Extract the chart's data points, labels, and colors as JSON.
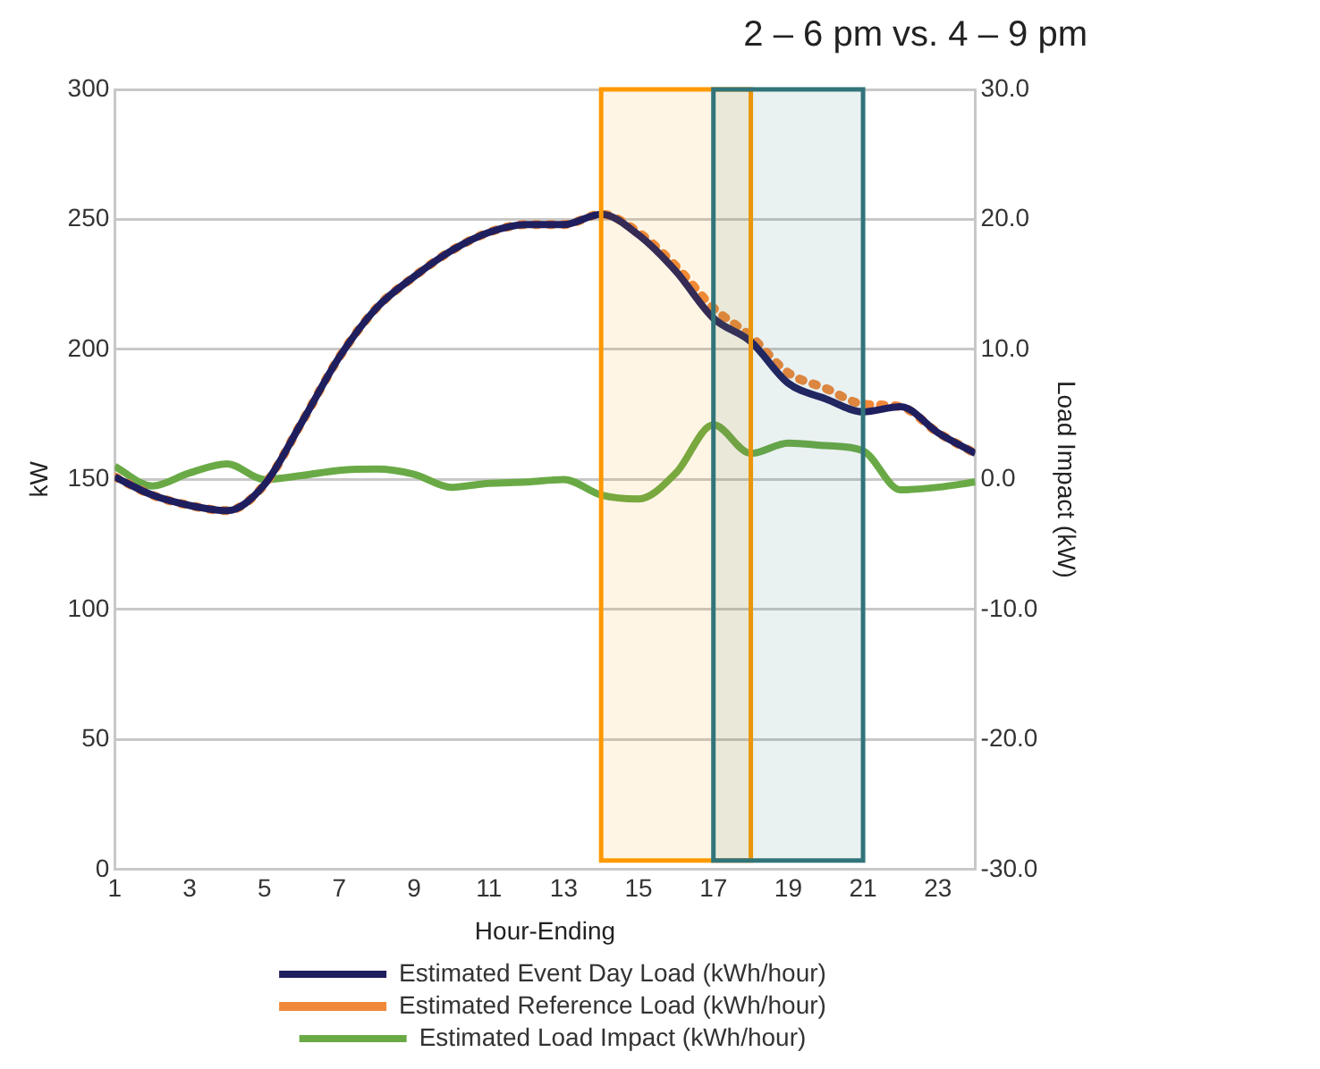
{
  "chart_data": {
    "type": "line",
    "title": "2 – 6 pm vs. 4 – 9 pm",
    "xlabel": "Hour-Ending",
    "ylabel": "kW",
    "y2label": "Load Impact (kW)",
    "x": [
      1,
      2,
      3,
      4,
      5,
      6,
      7,
      8,
      9,
      10,
      11,
      12,
      13,
      14,
      15,
      16,
      17,
      18,
      19,
      20,
      21,
      22,
      23,
      24
    ],
    "series": [
      {
        "name": "Estimated Event Day Load (kWh/hour)",
        "color": "#1f1f5f",
        "line_style": "solid",
        "values": [
          151,
          144,
          140,
          138,
          148,
          172,
          197,
          216,
          228,
          238,
          245,
          248,
          248,
          252,
          244,
          230,
          212,
          203,
          187,
          181,
          176,
          178,
          168,
          160
        ]
      },
      {
        "name": "Estimated Reference Load (kWh/hour)",
        "color": "#f0883a",
        "line_style": "dotted",
        "values": [
          151,
          144,
          140,
          138,
          148,
          172,
          197,
          216,
          228,
          238,
          245,
          248,
          248,
          252,
          245,
          232,
          216,
          205,
          191,
          185,
          179,
          178,
          168,
          160
        ]
      },
      {
        "name": "Estimated Load Impact (kWh/hour)",
        "color": "#6aaa46",
        "line_style": "solid",
        "axis": "y2",
        "values": [
          1.0,
          -0.5,
          0.5,
          1.2,
          0.0,
          0.3,
          0.7,
          0.8,
          0.4,
          -0.6,
          -0.3,
          -0.2,
          0.0,
          -1.2,
          -1.5,
          0.5,
          4.2,
          2.0,
          2.8,
          2.6,
          2.2,
          -0.8,
          -0.6,
          -0.2
        ]
      }
    ],
    "xlim": [
      1,
      24
    ],
    "xticks": [
      1,
      3,
      5,
      7,
      9,
      11,
      13,
      15,
      17,
      19,
      21,
      23
    ],
    "ylim": [
      0,
      300
    ],
    "yticks": [
      0,
      50,
      100,
      150,
      200,
      250,
      300
    ],
    "y2lim": [
      -30,
      30
    ],
    "y2ticks": [
      {
        "value": -30,
        "label": "-30.0"
      },
      {
        "value": -20,
        "label": "-20.0"
      },
      {
        "value": -10,
        "label": "-10.0"
      },
      {
        "value": 0,
        "label": "0.0"
      },
      {
        "value": 10,
        "label": "10.0"
      },
      {
        "value": 20,
        "label": "20.0"
      },
      {
        "value": 30,
        "label": "30.0"
      }
    ],
    "bands": [
      {
        "axis": "x",
        "from": 14,
        "to": 18,
        "color": "#ff9900"
      },
      {
        "axis": "x",
        "from": 17,
        "to": 21,
        "color": "#31747a"
      }
    ],
    "grid": "y",
    "legend": "bottom",
    "marker": "none"
  }
}
